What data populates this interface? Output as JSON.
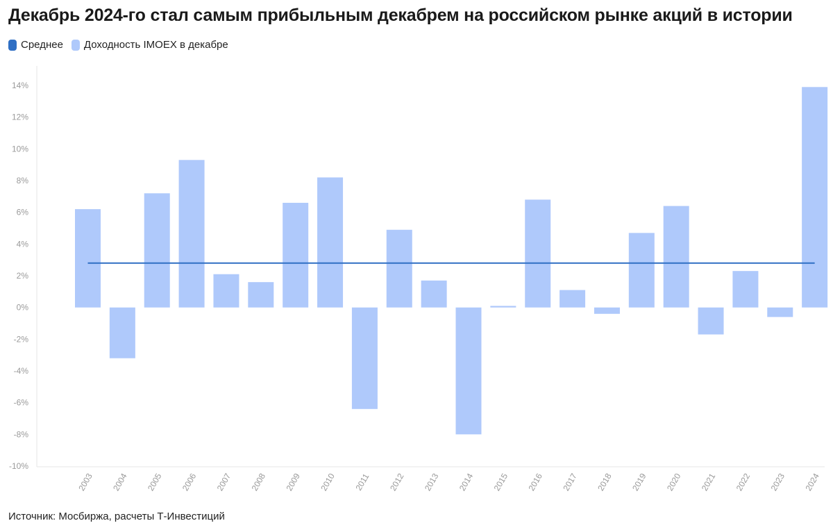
{
  "header": {
    "title": "Декабрь 2024-го стал самым прибыльным декабрем на российском рынке акций в истории"
  },
  "legend": {
    "items": [
      {
        "label": "Среднее",
        "color": "#2f6fc4"
      },
      {
        "label": "Доходность IMOEX в декабре",
        "color": "#afc9fb"
      }
    ]
  },
  "footer": {
    "source": "Источник: Мосбиржа, расчеты Т-Инвестиций"
  },
  "chart_data": {
    "type": "bar",
    "categories": [
      "2003",
      "2004",
      "2005",
      "2006",
      "2007",
      "2008",
      "2009",
      "2010",
      "2011",
      "2012",
      "2013",
      "2014",
      "2015",
      "2016",
      "2017",
      "2018",
      "2019",
      "2020",
      "2021",
      "2022",
      "2023",
      "2024"
    ],
    "series": [
      {
        "name": "Доходность IMOEX в декабре",
        "color": "#afc9fb",
        "values": [
          6.2,
          -3.2,
          7.2,
          9.3,
          2.1,
          1.6,
          6.6,
          8.2,
          -6.4,
          4.9,
          1.7,
          -8.0,
          0.1,
          6.8,
          1.1,
          -0.4,
          4.7,
          6.4,
          -1.7,
          2.3,
          -0.6,
          13.9
        ]
      },
      {
        "name": "Среднее",
        "type": "line",
        "color": "#2f6fc4",
        "value": 2.8
      }
    ],
    "ylim": [
      -10,
      14
    ],
    "yticks": [
      14,
      12,
      10,
      8,
      6,
      4,
      2,
      0,
      -2,
      -4,
      -6,
      -8,
      -10
    ],
    "ytick_labels": [
      "14%",
      "12%",
      "10%",
      "8%",
      "6%",
      "4%",
      "2%",
      "0%",
      "-2%",
      "-4%",
      "-6%",
      "-8%",
      "-10%"
    ],
    "grid": false,
    "legend_position": "top-left"
  }
}
